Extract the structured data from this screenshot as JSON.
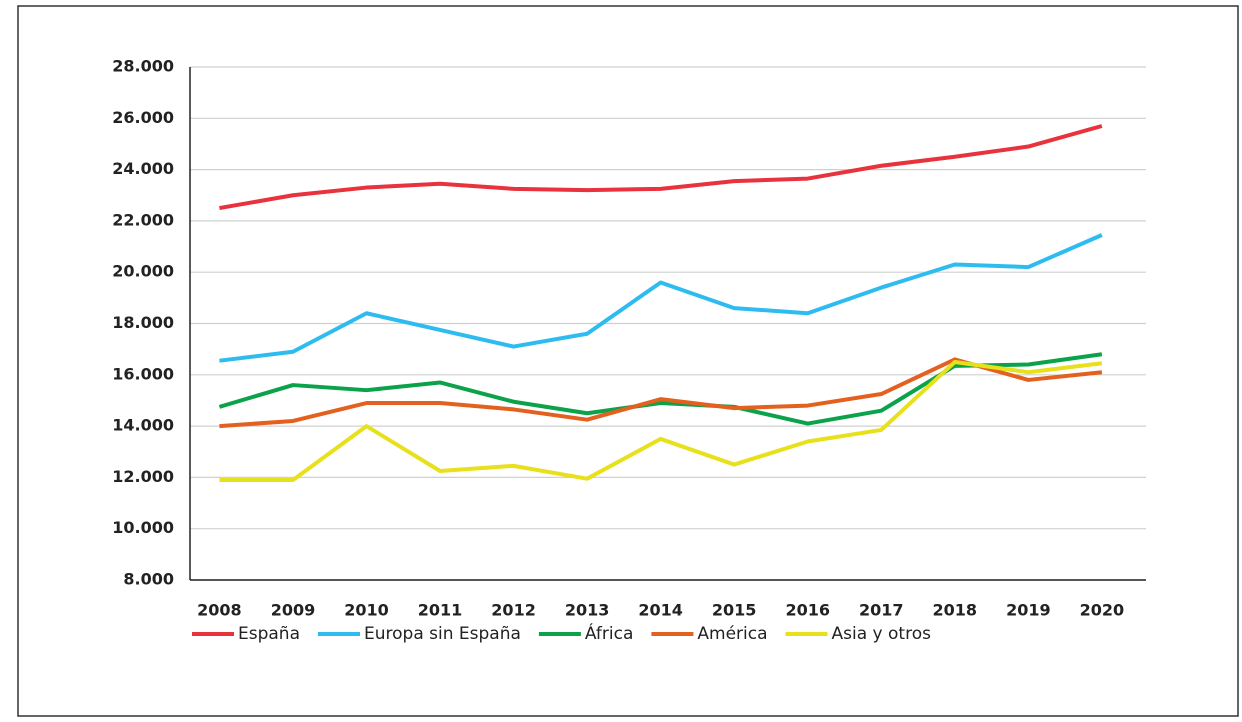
{
  "chart_data": {
    "type": "line",
    "categories": [
      "2008",
      "2009",
      "2010",
      "2011",
      "2012",
      "2013",
      "2014",
      "2015",
      "2016",
      "2017",
      "2018",
      "2019",
      "2020"
    ],
    "series": [
      {
        "name": "España",
        "color": "#e8323c",
        "values": [
          22500,
          23000,
          23300,
          23450,
          23250,
          23200,
          23250,
          23550,
          23650,
          24150,
          24500,
          24900,
          25700
        ]
      },
      {
        "name": "Europa sin España",
        "color": "#2ebcf0",
        "values": [
          16550,
          16900,
          18400,
          17750,
          17100,
          17600,
          19600,
          18600,
          18400,
          19400,
          20300,
          20200,
          21450
        ]
      },
      {
        "name": "África",
        "color": "#0ba24a",
        "values": [
          14750,
          15600,
          15400,
          15700,
          14950,
          14500,
          14900,
          14750,
          14100,
          14600,
          16350,
          16400,
          16800
        ]
      },
      {
        "name": "América",
        "color": "#e4601e",
        "values": [
          14000,
          14200,
          14900,
          14900,
          14650,
          14250,
          15050,
          14700,
          14800,
          15250,
          16600,
          15800,
          16100
        ]
      },
      {
        "name": "Asia y otros",
        "color": "#e8e01a",
        "values": [
          11900,
          11900,
          14000,
          12250,
          12450,
          11950,
          13500,
          12500,
          13400,
          13850,
          16500,
          16100,
          16450
        ]
      }
    ],
    "ylim": [
      8000,
      28000
    ],
    "yticks": [
      {
        "value": 8000,
        "label": "8.000"
      },
      {
        "value": 10000,
        "label": "10.000"
      },
      {
        "value": 12000,
        "label": "12.000"
      },
      {
        "value": 14000,
        "label": "14.000"
      },
      {
        "value": 16000,
        "label": "16.000"
      },
      {
        "value": 18000,
        "label": "18.000"
      },
      {
        "value": 20000,
        "label": "20.000"
      },
      {
        "value": 22000,
        "label": "22.000"
      },
      {
        "value": 24000,
        "label": "24.000"
      },
      {
        "value": 26000,
        "label": "26.000"
      },
      {
        "value": 28000,
        "label": "28.000"
      }
    ],
    "grid": true,
    "legend": "bottom"
  }
}
